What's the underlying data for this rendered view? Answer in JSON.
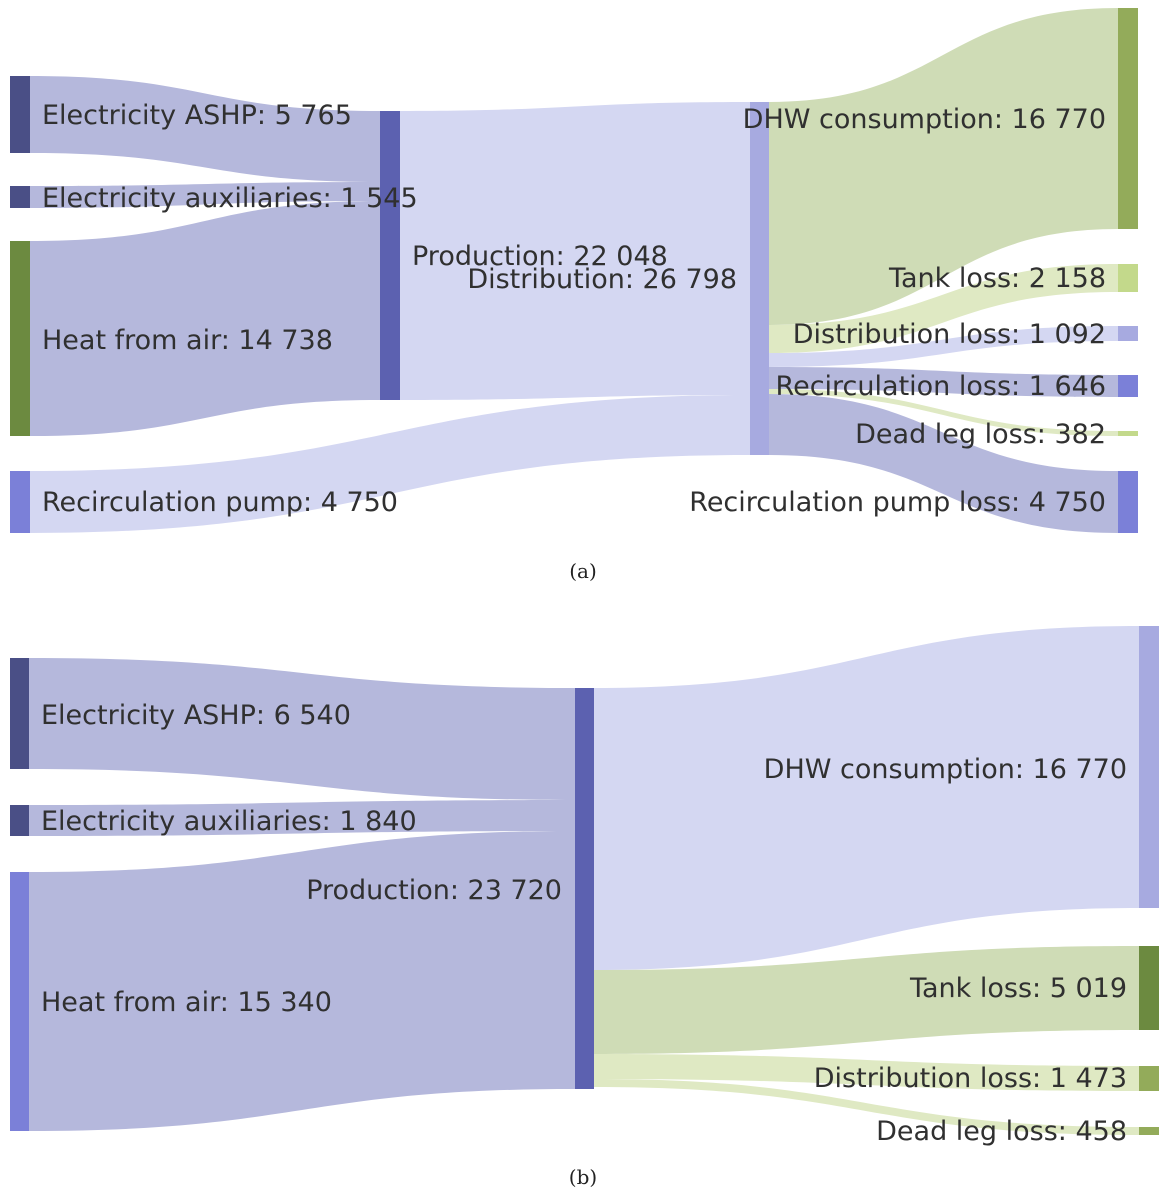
{
  "colors": {
    "node_dark": "#4a4f86",
    "node_mid": "#5c61b0",
    "node_light": "#a7aae0",
    "node_violet": "#7b80d8",
    "node_olive": "#6c8a40",
    "node_lime": "#c3d98b",
    "node_sage": "#93ab5a",
    "link_gray": "#b5b8dc",
    "link_pale": "#d4d7f2",
    "link_olive": "#cfdcb6",
    "link_lime": "#dfe9c3"
  },
  "diagram_a": {
    "caption": "(a)",
    "labels": {
      "elec_ashp": "Electricity ASHP: 5 765",
      "elec_aux": "Electricity auxiliaries: 1 545",
      "heat_air": "Heat from air: 14 738",
      "recirc_pump": "Recirculation pump: 4 750",
      "production": "Production: 22 048",
      "distribution": "Distribution: 26 798",
      "dhw": "DHW consumption: 16 770",
      "tank_loss": "Tank loss: 2 158",
      "dist_loss": "Distribution loss: 1 092",
      "recirc_loss": "Recirculation loss: 1 646",
      "dead_leg": "Dead leg loss: 382",
      "pump_loss": "Recirculation pump loss: 4 750"
    },
    "values": {
      "elec_ashp": 5765,
      "elec_aux": 1545,
      "heat_air": 14738,
      "recirc_pump": 4750,
      "production": 22048,
      "distribution": 26798,
      "dhw": 16770,
      "tank_loss": 2158,
      "dist_loss": 1092,
      "recirc_loss": 1646,
      "dead_leg": 382,
      "pump_loss": 4750
    }
  },
  "diagram_b": {
    "caption": "(b)",
    "labels": {
      "elec_ashp": "Electricity ASHP: 6 540",
      "elec_aux": "Electricity auxiliaries: 1 840",
      "heat_air": "Heat from air: 15 340",
      "production": "Production: 23 720",
      "dhw": "DHW consumption: 16 770",
      "tank_loss": "Tank loss: 5 019",
      "dist_loss": "Distribution loss: 1 473",
      "dead_leg": "Dead leg loss: 458"
    },
    "values": {
      "elec_ashp": 6540,
      "elec_aux": 1840,
      "heat_air": 15340,
      "production": 23720,
      "dhw": 16770,
      "tank_loss": 5019,
      "dist_loss": 1473,
      "dead_leg": 458
    }
  }
}
